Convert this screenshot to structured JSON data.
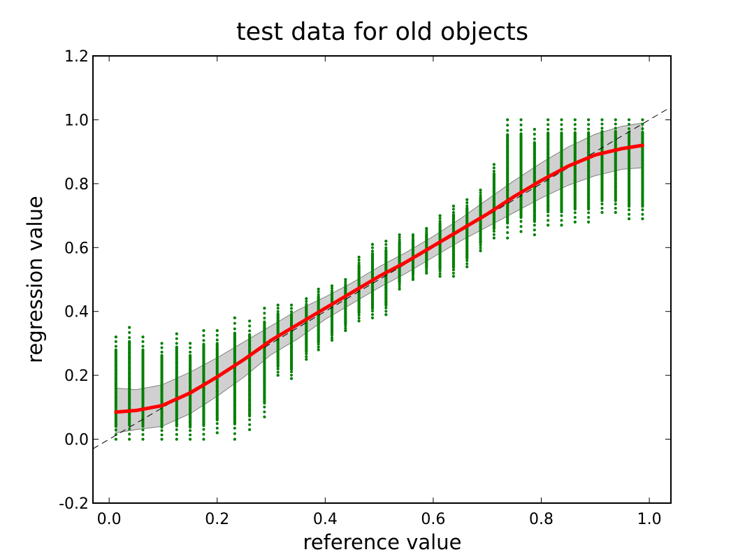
{
  "chart_data": {
    "type": "scatter",
    "title": "test data for old objects",
    "xlabel": "reference value",
    "ylabel": "regression value",
    "xlim": [
      -0.03,
      1.04
    ],
    "ylim": [
      -0.2,
      1.2
    ],
    "x_ticks": [
      "0.0",
      "0.2",
      "0.4",
      "0.6",
      "0.8",
      "1.0"
    ],
    "y_ticks": [
      "-0.2",
      "0.0",
      "0.2",
      "0.4",
      "0.6",
      "0.8",
      "1.0",
      "1.2"
    ],
    "grid": false,
    "colors": {
      "points": "#008000",
      "mean_line": "#ff0000",
      "band_fill": "#d0d0d0",
      "band_edge": "#808080",
      "identity_line": "#000000"
    },
    "scatter_columns": [
      {
        "x": 0.0125,
        "min": 0.0,
        "max": 0.32
      },
      {
        "x": 0.0375,
        "min": 0.0,
        "max": 0.35
      },
      {
        "x": 0.0625,
        "min": 0.0,
        "max": 0.32
      },
      {
        "x": 0.0975,
        "min": 0.0,
        "max": 0.3
      },
      {
        "x": 0.125,
        "min": 0.0,
        "max": 0.33
      },
      {
        "x": 0.15,
        "min": 0.0,
        "max": 0.3
      },
      {
        "x": 0.175,
        "min": 0.0,
        "max": 0.34
      },
      {
        "x": 0.2,
        "min": 0.02,
        "max": 0.34
      },
      {
        "x": 0.2325,
        "min": 0.0,
        "max": 0.38
      },
      {
        "x": 0.26,
        "min": 0.03,
        "max": 0.37
      },
      {
        "x": 0.2875,
        "min": 0.07,
        "max": 0.41
      },
      {
        "x": 0.3125,
        "min": 0.2,
        "max": 0.42
      },
      {
        "x": 0.3375,
        "min": 0.19,
        "max": 0.42
      },
      {
        "x": 0.365,
        "min": 0.25,
        "max": 0.44
      },
      {
        "x": 0.3875,
        "min": 0.28,
        "max": 0.47
      },
      {
        "x": 0.4125,
        "min": 0.31,
        "max": 0.48
      },
      {
        "x": 0.4375,
        "min": 0.34,
        "max": 0.5
      },
      {
        "x": 0.4625,
        "min": 0.37,
        "max": 0.57
      },
      {
        "x": 0.4875,
        "min": 0.38,
        "max": 0.61
      },
      {
        "x": 0.5125,
        "min": 0.39,
        "max": 0.62
      },
      {
        "x": 0.5375,
        "min": 0.47,
        "max": 0.64
      },
      {
        "x": 0.5625,
        "min": 0.5,
        "max": 0.64
      },
      {
        "x": 0.5875,
        "min": 0.52,
        "max": 0.66
      },
      {
        "x": 0.6125,
        "min": 0.51,
        "max": 0.7
      },
      {
        "x": 0.6375,
        "min": 0.51,
        "max": 0.73
      },
      {
        "x": 0.6625,
        "min": 0.54,
        "max": 0.75
      },
      {
        "x": 0.6875,
        "min": 0.59,
        "max": 0.78
      },
      {
        "x": 0.7125,
        "min": 0.63,
        "max": 0.86
      },
      {
        "x": 0.7375,
        "min": 0.63,
        "max": 1.0
      },
      {
        "x": 0.7625,
        "min": 0.65,
        "max": 1.0
      },
      {
        "x": 0.7875,
        "min": 0.64,
        "max": 0.97
      },
      {
        "x": 0.8125,
        "min": 0.67,
        "max": 1.0
      },
      {
        "x": 0.8375,
        "min": 0.67,
        "max": 1.0
      },
      {
        "x": 0.8625,
        "min": 0.68,
        "max": 1.0
      },
      {
        "x": 0.8875,
        "min": 0.68,
        "max": 1.0
      },
      {
        "x": 0.9125,
        "min": 0.71,
        "max": 1.0
      },
      {
        "x": 0.9375,
        "min": 0.71,
        "max": 1.0
      },
      {
        "x": 0.9625,
        "min": 0.69,
        "max": 1.0
      },
      {
        "x": 0.9875,
        "min": 0.69,
        "max": 1.0
      }
    ],
    "mean_line": {
      "x": [
        0.0125,
        0.05,
        0.0975,
        0.15,
        0.2,
        0.25,
        0.3,
        0.35,
        0.4,
        0.45,
        0.5,
        0.55,
        0.6,
        0.65,
        0.7,
        0.75,
        0.8,
        0.85,
        0.9,
        0.95,
        0.9875
      ],
      "y": [
        0.085,
        0.09,
        0.105,
        0.145,
        0.195,
        0.25,
        0.31,
        0.36,
        0.41,
        0.46,
        0.51,
        0.555,
        0.605,
        0.655,
        0.705,
        0.76,
        0.81,
        0.855,
        0.89,
        0.91,
        0.92
      ]
    },
    "band": {
      "x": [
        0.0125,
        0.05,
        0.0975,
        0.15,
        0.2,
        0.25,
        0.3,
        0.35,
        0.4,
        0.45,
        0.5,
        0.55,
        0.6,
        0.65,
        0.7,
        0.75,
        0.8,
        0.85,
        0.9,
        0.95,
        0.9875
      ],
      "upper": [
        0.16,
        0.155,
        0.17,
        0.21,
        0.255,
        0.305,
        0.355,
        0.405,
        0.445,
        0.49,
        0.54,
        0.585,
        0.635,
        0.69,
        0.75,
        0.81,
        0.865,
        0.915,
        0.955,
        0.98,
        0.99
      ],
      "lower": [
        0.02,
        0.03,
        0.04,
        0.08,
        0.135,
        0.195,
        0.265,
        0.315,
        0.375,
        0.425,
        0.475,
        0.52,
        0.57,
        0.62,
        0.665,
        0.71,
        0.755,
        0.795,
        0.825,
        0.845,
        0.85
      ]
    },
    "identity_line": {
      "x": [
        -0.03,
        1.04
      ],
      "y": [
        -0.03,
        1.04
      ]
    }
  }
}
